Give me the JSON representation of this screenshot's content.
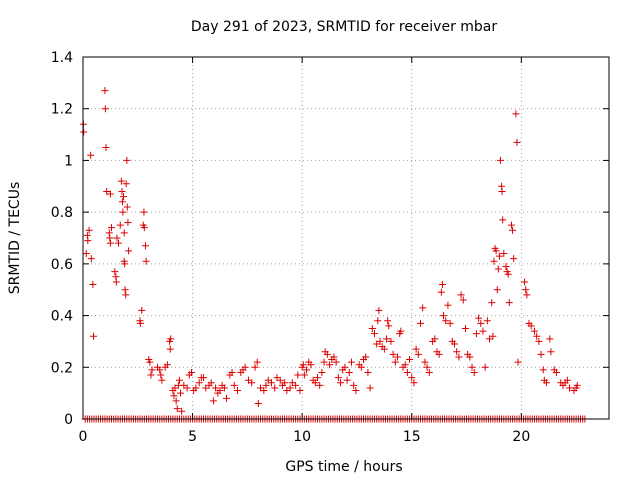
{
  "chart_data": {
    "type": "scatter",
    "title": "Day 291 of 2023, SRMTID for receiver mbar",
    "xlabel": "GPS time / hours",
    "ylabel": "SRMTID / TECUs",
    "xlim": [
      0,
      24
    ],
    "ylim": [
      0,
      1.4
    ],
    "xticks": [
      0,
      5,
      10,
      15,
      20
    ],
    "yticks": [
      0,
      0.2,
      0.4,
      0.6,
      0.8,
      1,
      1.2,
      1.4
    ],
    "xtick_labels": [
      "0",
      "5",
      "10",
      "15",
      "20"
    ],
    "ytick_labels": [
      "0",
      "0.2",
      "0.4",
      "0.6",
      "0.8",
      "1",
      "1.2",
      "1.4"
    ],
    "grid": true,
    "marker": "+",
    "color": "#dd0000",
    "series": [
      {
        "name": "SRMTID",
        "points": [
          [
            0.02,
            1.14
          ],
          [
            0.03,
            1.11
          ],
          [
            0.15,
            0.64
          ],
          [
            0.2,
            0.71
          ],
          [
            0.22,
            0.69
          ],
          [
            0.28,
            0.73
          ],
          [
            0.35,
            1.02
          ],
          [
            0.38,
            0.62
          ],
          [
            0.45,
            0.52
          ],
          [
            0.48,
            0.32
          ],
          [
            1.0,
            1.27
          ],
          [
            1.02,
            1.2
          ],
          [
            1.05,
            1.05
          ],
          [
            1.08,
            0.88
          ],
          [
            1.25,
            0.87
          ],
          [
            1.2,
            0.72
          ],
          [
            1.22,
            0.7
          ],
          [
            1.25,
            0.68
          ],
          [
            1.3,
            0.74
          ],
          [
            1.45,
            0.57
          ],
          [
            1.5,
            0.55
          ],
          [
            1.52,
            0.53
          ],
          [
            1.55,
            0.7
          ],
          [
            1.62,
            0.68
          ],
          [
            1.7,
            0.75
          ],
          [
            1.75,
            0.92
          ],
          [
            1.78,
            0.88
          ],
          [
            1.8,
            0.84
          ],
          [
            1.82,
            0.8
          ],
          [
            1.85,
            0.86
          ],
          [
            1.88,
            0.72
          ],
          [
            1.88,
            0.61
          ],
          [
            1.9,
            0.6
          ],
          [
            1.92,
            0.5
          ],
          [
            1.95,
            0.48
          ],
          [
            1.97,
            0.91
          ],
          [
            2.0,
            1.0
          ],
          [
            2.02,
            0.82
          ],
          [
            2.05,
            0.76
          ],
          [
            2.08,
            0.65
          ],
          [
            2.6,
            0.38
          ],
          [
            2.62,
            0.37
          ],
          [
            2.68,
            0.42
          ],
          [
            2.75,
            0.75
          ],
          [
            2.78,
            0.8
          ],
          [
            2.8,
            0.74
          ],
          [
            2.85,
            0.67
          ],
          [
            2.88,
            0.61
          ],
          [
            3.0,
            0.23
          ],
          [
            3.05,
            0.22
          ],
          [
            3.1,
            0.17
          ],
          [
            3.15,
            0.19
          ],
          [
            3.4,
            0.2
          ],
          [
            3.5,
            0.19
          ],
          [
            3.55,
            0.17
          ],
          [
            3.6,
            0.15
          ],
          [
            3.75,
            0.2
          ],
          [
            3.85,
            0.21
          ],
          [
            3.95,
            0.3
          ],
          [
            4.0,
            0.31
          ],
          [
            3.98,
            0.27
          ],
          [
            4.1,
            0.11
          ],
          [
            4.15,
            0.09
          ],
          [
            4.2,
            0.12
          ],
          [
            4.25,
            0.07
          ],
          [
            4.3,
            0.04
          ],
          [
            4.35,
            0.13
          ],
          [
            4.4,
            0.15
          ],
          [
            4.45,
            0.1
          ],
          [
            4.5,
            0.03
          ],
          [
            4.6,
            0.13
          ],
          [
            4.75,
            0.12
          ],
          [
            4.85,
            0.17
          ],
          [
            4.95,
            0.18
          ],
          [
            5.05,
            0.11
          ],
          [
            5.15,
            0.12
          ],
          [
            5.3,
            0.14
          ],
          [
            5.4,
            0.16
          ],
          [
            5.5,
            0.16
          ],
          [
            5.6,
            0.12
          ],
          [
            5.75,
            0.13
          ],
          [
            5.85,
            0.14
          ],
          [
            5.95,
            0.07
          ],
          [
            6.05,
            0.12
          ],
          [
            6.15,
            0.1
          ],
          [
            6.25,
            0.11
          ],
          [
            6.35,
            0.13
          ],
          [
            6.45,
            0.12
          ],
          [
            6.55,
            0.08
          ],
          [
            6.7,
            0.17
          ],
          [
            6.8,
            0.18
          ],
          [
            6.9,
            0.13
          ],
          [
            7.05,
            0.11
          ],
          [
            7.2,
            0.18
          ],
          [
            7.3,
            0.19
          ],
          [
            7.4,
            0.2
          ],
          [
            7.55,
            0.15
          ],
          [
            7.7,
            0.14
          ],
          [
            7.85,
            0.2
          ],
          [
            7.95,
            0.22
          ],
          [
            8.0,
            0.06
          ],
          [
            8.1,
            0.12
          ],
          [
            8.25,
            0.11
          ],
          [
            8.35,
            0.13
          ],
          [
            8.45,
            0.15
          ],
          [
            8.6,
            0.14
          ],
          [
            8.75,
            0.12
          ],
          [
            8.85,
            0.16
          ],
          [
            9.0,
            0.15
          ],
          [
            9.1,
            0.13
          ],
          [
            9.2,
            0.14
          ],
          [
            9.3,
            0.11
          ],
          [
            9.45,
            0.12
          ],
          [
            9.55,
            0.14
          ],
          [
            9.7,
            0.13
          ],
          [
            9.8,
            0.17
          ],
          [
            9.9,
            0.11
          ],
          [
            10.0,
            0.2
          ],
          [
            10.05,
            0.21
          ],
          [
            10.1,
            0.17
          ],
          [
            10.2,
            0.19
          ],
          [
            10.3,
            0.22
          ],
          [
            10.4,
            0.21
          ],
          [
            10.5,
            0.15
          ],
          [
            10.6,
            0.14
          ],
          [
            10.7,
            0.16
          ],
          [
            10.8,
            0.13
          ],
          [
            10.9,
            0.18
          ],
          [
            11.0,
            0.22
          ],
          [
            11.05,
            0.26
          ],
          [
            11.15,
            0.25
          ],
          [
            11.25,
            0.21
          ],
          [
            11.35,
            0.23
          ],
          [
            11.45,
            0.24
          ],
          [
            11.55,
            0.22
          ],
          [
            11.65,
            0.16
          ],
          [
            11.75,
            0.14
          ],
          [
            11.85,
            0.19
          ],
          [
            11.95,
            0.2
          ],
          [
            12.05,
            0.15
          ],
          [
            12.15,
            0.18
          ],
          [
            12.25,
            0.22
          ],
          [
            12.35,
            0.13
          ],
          [
            12.45,
            0.11
          ],
          [
            12.6,
            0.21
          ],
          [
            12.7,
            0.2
          ],
          [
            12.8,
            0.23
          ],
          [
            12.9,
            0.24
          ],
          [
            13.0,
            0.18
          ],
          [
            13.1,
            0.12
          ],
          [
            13.2,
            0.35
          ],
          [
            13.3,
            0.33
          ],
          [
            13.4,
            0.29
          ],
          [
            13.45,
            0.38
          ],
          [
            13.5,
            0.42
          ],
          [
            13.55,
            0.3
          ],
          [
            13.65,
            0.28
          ],
          [
            13.75,
            0.27
          ],
          [
            13.85,
            0.31
          ],
          [
            13.9,
            0.38
          ],
          [
            13.95,
            0.36
          ],
          [
            14.05,
            0.3
          ],
          [
            14.15,
            0.25
          ],
          [
            14.25,
            0.22
          ],
          [
            14.35,
            0.24
          ],
          [
            14.45,
            0.33
          ],
          [
            14.5,
            0.34
          ],
          [
            14.6,
            0.2
          ],
          [
            14.7,
            0.21
          ],
          [
            14.8,
            0.18
          ],
          [
            14.9,
            0.23
          ],
          [
            15.0,
            0.16
          ],
          [
            15.1,
            0.14
          ],
          [
            15.2,
            0.27
          ],
          [
            15.3,
            0.25
          ],
          [
            15.4,
            0.37
          ],
          [
            15.5,
            0.43
          ],
          [
            15.6,
            0.22
          ],
          [
            15.7,
            0.2
          ],
          [
            15.8,
            0.18
          ],
          [
            15.95,
            0.3
          ],
          [
            16.05,
            0.31
          ],
          [
            16.15,
            0.26
          ],
          [
            16.25,
            0.25
          ],
          [
            16.35,
            0.49
          ],
          [
            16.4,
            0.52
          ],
          [
            16.45,
            0.4
          ],
          [
            16.55,
            0.38
          ],
          [
            16.65,
            0.44
          ],
          [
            16.75,
            0.37
          ],
          [
            16.85,
            0.3
          ],
          [
            16.95,
            0.29
          ],
          [
            17.05,
            0.26
          ],
          [
            17.15,
            0.24
          ],
          [
            17.25,
            0.48
          ],
          [
            17.35,
            0.46
          ],
          [
            17.45,
            0.35
          ],
          [
            17.55,
            0.25
          ],
          [
            17.65,
            0.24
          ],
          [
            17.75,
            0.2
          ],
          [
            17.85,
            0.18
          ],
          [
            17.95,
            0.33
          ],
          [
            18.05,
            0.39
          ],
          [
            18.15,
            0.37
          ],
          [
            18.25,
            0.34
          ],
          [
            18.35,
            0.2
          ],
          [
            18.45,
            0.38
          ],
          [
            18.55,
            0.31
          ],
          [
            18.65,
            0.45
          ],
          [
            18.7,
            0.32
          ],
          [
            18.75,
            0.61
          ],
          [
            18.8,
            0.66
          ],
          [
            18.85,
            0.65
          ],
          [
            18.9,
            0.5
          ],
          [
            18.95,
            0.58
          ],
          [
            19.0,
            0.63
          ],
          [
            19.05,
            1.0
          ],
          [
            19.1,
            0.9
          ],
          [
            19.12,
            0.88
          ],
          [
            19.15,
            0.77
          ],
          [
            19.2,
            0.64
          ],
          [
            19.3,
            0.59
          ],
          [
            19.35,
            0.57
          ],
          [
            19.4,
            0.56
          ],
          [
            19.45,
            0.45
          ],
          [
            19.55,
            0.75
          ],
          [
            19.6,
            0.73
          ],
          [
            19.65,
            0.62
          ],
          [
            19.75,
            1.18
          ],
          [
            19.8,
            1.07
          ],
          [
            19.85,
            0.22
          ],
          [
            20.15,
            0.53
          ],
          [
            20.2,
            0.5
          ],
          [
            20.25,
            0.48
          ],
          [
            20.35,
            0.37
          ],
          [
            20.45,
            0.36
          ],
          [
            20.6,
            0.34
          ],
          [
            20.7,
            0.32
          ],
          [
            20.8,
            0.3
          ],
          [
            20.9,
            0.25
          ],
          [
            21.0,
            0.19
          ],
          [
            21.05,
            0.15
          ],
          [
            21.15,
            0.14
          ],
          [
            21.3,
            0.31
          ],
          [
            21.35,
            0.26
          ],
          [
            21.5,
            0.19
          ],
          [
            21.6,
            0.18
          ],
          [
            21.8,
            0.14
          ],
          [
            21.9,
            0.13
          ],
          [
            22.0,
            0.14
          ],
          [
            22.1,
            0.15
          ],
          [
            22.2,
            0.12
          ],
          [
            22.4,
            0.11
          ],
          [
            22.5,
            0.12
          ],
          [
            22.55,
            0.13
          ]
        ],
        "zero_x_range": [
          0.1,
          22.9
        ],
        "zero_x_step": 0.1
      }
    ]
  }
}
